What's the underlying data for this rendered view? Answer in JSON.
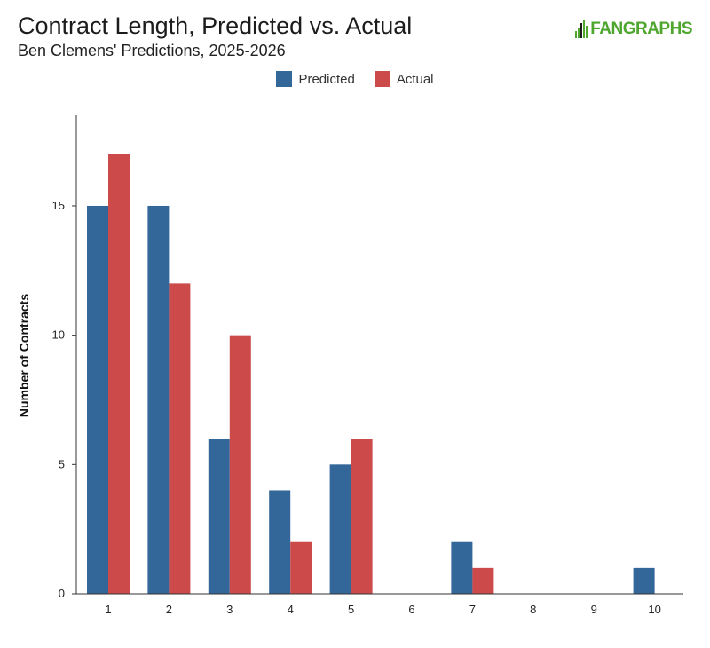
{
  "header": {
    "title": "Contract Length, Predicted vs. Actual",
    "subtitle": "Ben Clemens' Predictions, 2025-2026",
    "logo_text": "FANGRAPHS",
    "logo_color": "#4ea62f"
  },
  "chart_data": {
    "type": "bar",
    "title": "Contract Length, Predicted vs. Actual",
    "subtitle": "Ben Clemens' Predictions, 2025-2026",
    "xlabel": "",
    "ylabel": "Number of Contracts",
    "categories": [
      "1",
      "2",
      "3",
      "4",
      "5",
      "6",
      "7",
      "8",
      "9",
      "10"
    ],
    "series": [
      {
        "name": "Predicted",
        "color": "#336699",
        "values": [
          15,
          15,
          6,
          4,
          5,
          0,
          2,
          0,
          0,
          1
        ]
      },
      {
        "name": "Actual",
        "color": "#cc4a4a",
        "values": [
          17,
          12,
          10,
          2,
          6,
          0,
          1,
          0,
          0,
          0
        ]
      }
    ],
    "ylim": [
      0,
      18.5
    ],
    "yticks": [
      "0",
      "5",
      "10",
      "15"
    ],
    "grid": false,
    "legend_position": "top-center"
  }
}
